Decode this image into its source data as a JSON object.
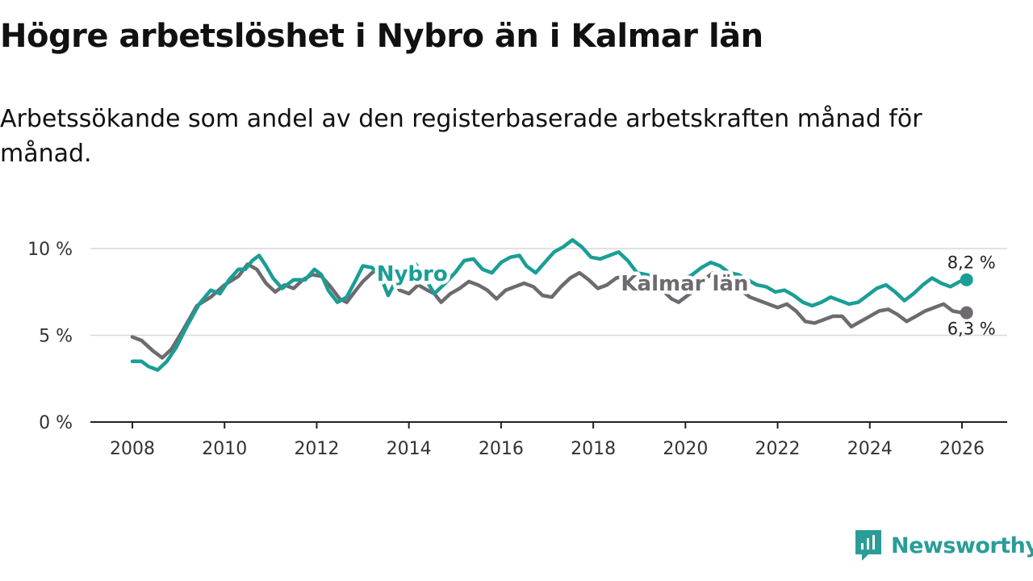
{
  "title": "Högre arbetslöshet i Nybro än i Kalmar län",
  "subtitle": "Arbetssökande som andel av den registerbaserade arbetskraften månad för månad.",
  "brand": {
    "name": "Newsworthy",
    "icon": "newsworthy-logo-icon",
    "color": "#2a9d96"
  },
  "chart_data": {
    "type": "line",
    "title": "Högre arbetslöshet i Nybro än i Kalmar län",
    "xlabel": "",
    "ylabel": "",
    "xlim": [
      2008,
      2026.1
    ],
    "ylim": [
      0,
      10
    ],
    "x_ticks": [
      2008,
      2010,
      2012,
      2014,
      2016,
      2018,
      2020,
      2022,
      2024,
      2026
    ],
    "x_tick_labels": [
      "2008",
      "2010",
      "2012",
      "2014",
      "2016",
      "2018",
      "2020",
      "2022",
      "2024",
      "2026"
    ],
    "y_ticks": [
      0,
      5,
      10
    ],
    "y_tick_labels": [
      "0 %",
      "5 %",
      "10 %"
    ],
    "grid": "horizontal",
    "series": [
      {
        "name": "Kalmar län",
        "color": "#6d6a70",
        "label": "Kalmar län",
        "end_label": "6,3 %",
        "points": [
          [
            2008.0,
            4.9
          ],
          [
            2008.2,
            4.7
          ],
          [
            2008.45,
            4.1
          ],
          [
            2008.65,
            3.7
          ],
          [
            2008.85,
            4.2
          ],
          [
            2009.1,
            5.3
          ],
          [
            2009.4,
            6.7
          ],
          [
            2009.7,
            7.2
          ],
          [
            2010.0,
            7.9
          ],
          [
            2010.3,
            8.4
          ],
          [
            2010.5,
            9.1
          ],
          [
            2010.7,
            8.8
          ],
          [
            2010.9,
            8.0
          ],
          [
            2011.1,
            7.5
          ],
          [
            2011.3,
            7.9
          ],
          [
            2011.5,
            7.7
          ],
          [
            2011.7,
            8.2
          ],
          [
            2011.9,
            8.5
          ],
          [
            2012.1,
            8.4
          ],
          [
            2012.3,
            7.8
          ],
          [
            2012.5,
            7.1
          ],
          [
            2012.65,
            6.9
          ],
          [
            2012.85,
            7.6
          ],
          [
            2013.0,
            8.1
          ],
          [
            2013.2,
            8.6
          ],
          [
            2013.4,
            8.9
          ],
          [
            2013.6,
            8.4
          ],
          [
            2013.8,
            7.6
          ],
          [
            2014.0,
            7.4
          ],
          [
            2014.2,
            7.9
          ],
          [
            2014.4,
            7.6
          ],
          [
            2014.55,
            7.4
          ],
          [
            2014.7,
            6.9
          ],
          [
            2014.9,
            7.4
          ],
          [
            2015.1,
            7.7
          ],
          [
            2015.3,
            8.1
          ],
          [
            2015.5,
            7.9
          ],
          [
            2015.7,
            7.6
          ],
          [
            2015.9,
            7.1
          ],
          [
            2016.1,
            7.6
          ],
          [
            2016.3,
            7.8
          ],
          [
            2016.5,
            8.0
          ],
          [
            2016.7,
            7.8
          ],
          [
            2016.9,
            7.3
          ],
          [
            2017.1,
            7.2
          ],
          [
            2017.3,
            7.8
          ],
          [
            2017.5,
            8.3
          ],
          [
            2017.7,
            8.6
          ],
          [
            2017.9,
            8.2
          ],
          [
            2018.1,
            7.7
          ],
          [
            2018.3,
            7.9
          ],
          [
            2018.5,
            8.3
          ],
          [
            2018.7,
            8.4
          ],
          [
            2018.9,
            8.0
          ],
          [
            2019.1,
            7.5
          ],
          [
            2019.3,
            7.7
          ],
          [
            2019.5,
            7.6
          ],
          [
            2019.7,
            7.1
          ],
          [
            2019.85,
            6.9
          ],
          [
            2020.0,
            7.2
          ],
          [
            2020.2,
            7.6
          ],
          [
            2020.4,
            8.2
          ],
          [
            2020.6,
            8.6
          ],
          [
            2020.8,
            8.4
          ],
          [
            2021.0,
            8.0
          ],
          [
            2021.2,
            7.6
          ],
          [
            2021.4,
            7.2
          ],
          [
            2021.6,
            7.0
          ],
          [
            2021.8,
            6.8
          ],
          [
            2022.0,
            6.6
          ],
          [
            2022.2,
            6.8
          ],
          [
            2022.4,
            6.4
          ],
          [
            2022.6,
            5.8
          ],
          [
            2022.8,
            5.7
          ],
          [
            2023.0,
            5.9
          ],
          [
            2023.2,
            6.1
          ],
          [
            2023.4,
            6.1
          ],
          [
            2023.6,
            5.5
          ],
          [
            2023.8,
            5.8
          ],
          [
            2024.0,
            6.1
          ],
          [
            2024.2,
            6.4
          ],
          [
            2024.4,
            6.5
          ],
          [
            2024.6,
            6.2
          ],
          [
            2024.8,
            5.8
          ],
          [
            2025.0,
            6.1
          ],
          [
            2025.2,
            6.4
          ],
          [
            2025.4,
            6.6
          ],
          [
            2025.6,
            6.8
          ],
          [
            2025.8,
            6.4
          ],
          [
            2026.0,
            6.3
          ],
          [
            2026.1,
            6.3
          ]
        ]
      },
      {
        "name": "Nybro",
        "color": "#1a9e96",
        "label": "Nybro",
        "end_label": "8,2 %",
        "points": [
          [
            2008.0,
            3.5
          ],
          [
            2008.2,
            3.5
          ],
          [
            2008.35,
            3.2
          ],
          [
            2008.55,
            3.0
          ],
          [
            2008.75,
            3.5
          ],
          [
            2008.95,
            4.3
          ],
          [
            2009.2,
            5.6
          ],
          [
            2009.45,
            6.8
          ],
          [
            2009.7,
            7.6
          ],
          [
            2009.9,
            7.4
          ],
          [
            2010.1,
            8.2
          ],
          [
            2010.3,
            8.8
          ],
          [
            2010.45,
            8.8
          ],
          [
            2010.6,
            9.3
          ],
          [
            2010.75,
            9.6
          ],
          [
            2010.9,
            9.0
          ],
          [
            2011.05,
            8.3
          ],
          [
            2011.25,
            7.7
          ],
          [
            2011.5,
            8.2
          ],
          [
            2011.75,
            8.2
          ],
          [
            2011.95,
            8.8
          ],
          [
            2012.1,
            8.5
          ],
          [
            2012.25,
            7.6
          ],
          [
            2012.45,
            6.9
          ],
          [
            2012.65,
            7.2
          ],
          [
            2012.85,
            8.2
          ],
          [
            2013.0,
            9.0
          ],
          [
            2013.2,
            8.9
          ],
          [
            2013.4,
            8.3
          ],
          [
            2013.55,
            7.3
          ],
          [
            2013.75,
            8.3
          ],
          [
            2013.95,
            8.9
          ],
          [
            2014.15,
            9.1
          ],
          [
            2014.35,
            8.3
          ],
          [
            2014.55,
            7.4
          ],
          [
            2014.75,
            7.9
          ],
          [
            2015.0,
            8.6
          ],
          [
            2015.2,
            9.3
          ],
          [
            2015.4,
            9.4
          ],
          [
            2015.6,
            8.8
          ],
          [
            2015.8,
            8.6
          ],
          [
            2016.0,
            9.2
          ],
          [
            2016.2,
            9.5
          ],
          [
            2016.4,
            9.6
          ],
          [
            2016.55,
            9.0
          ],
          [
            2016.75,
            8.6
          ],
          [
            2016.95,
            9.2
          ],
          [
            2017.15,
            9.8
          ],
          [
            2017.35,
            10.1
          ],
          [
            2017.55,
            10.5
          ],
          [
            2017.75,
            10.1
          ],
          [
            2017.95,
            9.5
          ],
          [
            2018.15,
            9.4
          ],
          [
            2018.35,
            9.6
          ],
          [
            2018.55,
            9.8
          ],
          [
            2018.75,
            9.3
          ],
          [
            2018.95,
            8.6
          ],
          [
            2019.15,
            8.5
          ],
          [
            2019.35,
            8.4
          ],
          [
            2019.55,
            8.2
          ],
          [
            2019.75,
            8.1
          ],
          [
            2019.95,
            8.2
          ],
          [
            2020.15,
            8.5
          ],
          [
            2020.35,
            8.9
          ],
          [
            2020.55,
            9.2
          ],
          [
            2020.75,
            9.0
          ],
          [
            2020.95,
            8.6
          ],
          [
            2021.15,
            8.5
          ],
          [
            2021.35,
            8.2
          ],
          [
            2021.55,
            7.9
          ],
          [
            2021.75,
            7.8
          ],
          [
            2021.95,
            7.5
          ],
          [
            2022.15,
            7.6
          ],
          [
            2022.35,
            7.3
          ],
          [
            2022.55,
            6.9
          ],
          [
            2022.75,
            6.7
          ],
          [
            2022.95,
            6.9
          ],
          [
            2023.15,
            7.2
          ],
          [
            2023.35,
            7.0
          ],
          [
            2023.55,
            6.8
          ],
          [
            2023.75,
            6.9
          ],
          [
            2023.95,
            7.3
          ],
          [
            2024.15,
            7.7
          ],
          [
            2024.35,
            7.9
          ],
          [
            2024.55,
            7.5
          ],
          [
            2024.75,
            7.0
          ],
          [
            2024.95,
            7.4
          ],
          [
            2025.15,
            7.9
          ],
          [
            2025.35,
            8.3
          ],
          [
            2025.55,
            8.0
          ],
          [
            2025.75,
            7.8
          ],
          [
            2025.95,
            8.1
          ],
          [
            2026.1,
            8.2
          ]
        ]
      }
    ]
  }
}
